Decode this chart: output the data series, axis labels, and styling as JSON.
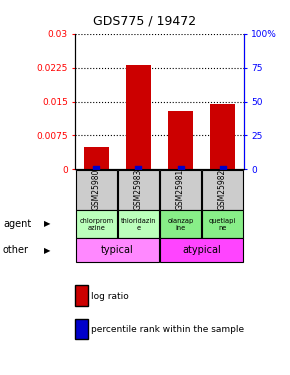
{
  "title": "GDS775 / 19472",
  "samples": [
    "GSM25980",
    "GSM25983",
    "GSM25981",
    "GSM25982"
  ],
  "log_ratio": [
    0.005,
    0.023,
    0.013,
    0.0145
  ],
  "percentile_rank": [
    0.5,
    0.545,
    0.503,
    0.522
  ],
  "ylim_left": [
    0,
    0.03
  ],
  "ylim_right": [
    0,
    100
  ],
  "yticks_left": [
    0,
    0.0075,
    0.015,
    0.0225,
    0.03
  ],
  "ytick_labels_left": [
    "0",
    "0.0075",
    "0.015",
    "0.0225",
    "0.03"
  ],
  "yticks_right": [
    0,
    25,
    50,
    75,
    100
  ],
  "ytick_labels_right": [
    "0",
    "25",
    "50",
    "75",
    "100%"
  ],
  "bar_color": "#cc0000",
  "dot_color": "#0000cc",
  "agent_labels": [
    "chlorprom\nazine",
    "thioridazin\ne",
    "olanzap\nine",
    "quetiapi\nne"
  ],
  "agent_colors": [
    "#bbffbb",
    "#bbffbb",
    "#88ee88",
    "#88ee88"
  ],
  "other_color_typical": "#ff88ff",
  "other_color_atypical": "#ff44ff",
  "sample_box_color": "#cccccc",
  "legend_log_ratio_color": "#cc0000",
  "legend_percentile_color": "#0000cc"
}
